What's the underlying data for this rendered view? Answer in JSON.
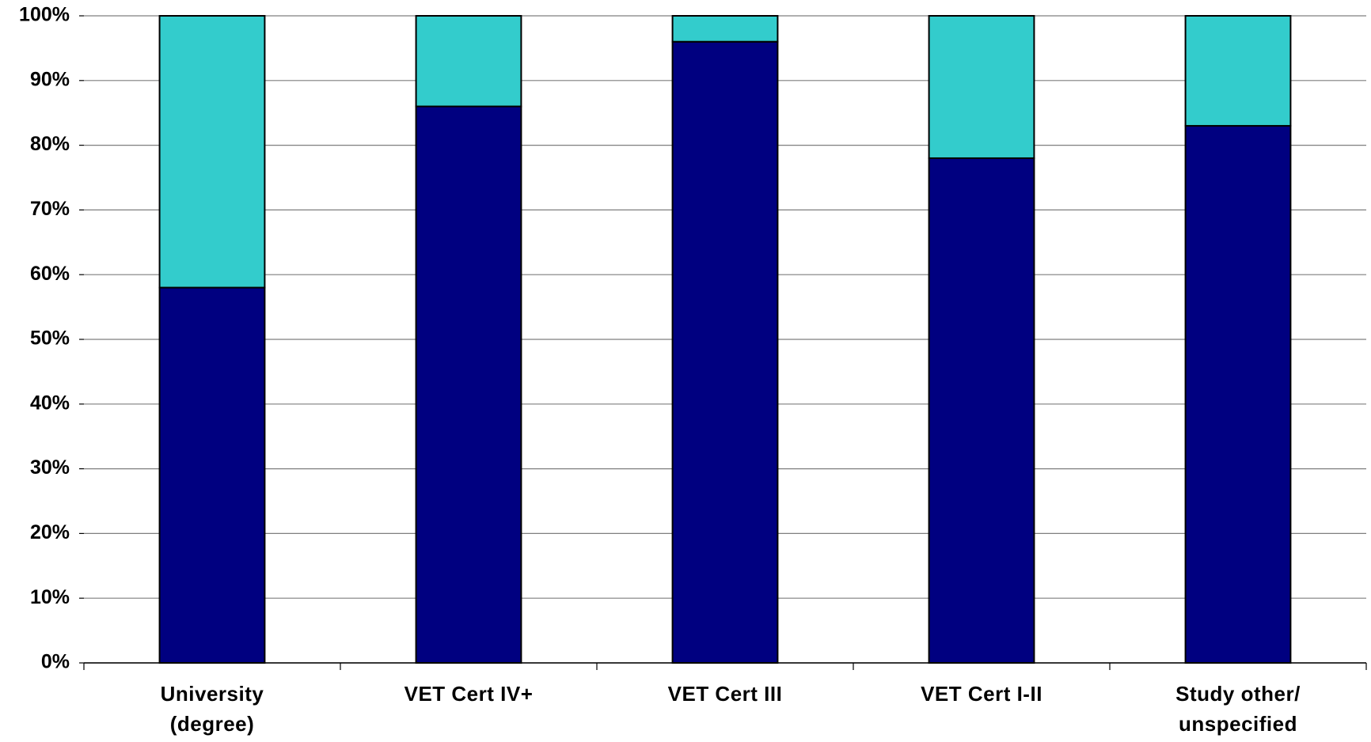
{
  "chart_data": {
    "type": "stacked_bar",
    "categories": [
      "University\n(degree)",
      "VET Cert IV+",
      "VET Cert III",
      "VET Cert I-II",
      "Study other/\nunspecified"
    ],
    "series": [
      {
        "color": "#000080",
        "values": [
          58,
          86,
          96,
          78,
          83
        ]
      },
      {
        "color": "#33cccc",
        "values": [
          42,
          14,
          4,
          22,
          17
        ]
      }
    ],
    "ylim": [
      0,
      100
    ],
    "yticks": [
      {
        "value": 0,
        "label": "0%"
      },
      {
        "value": 10,
        "label": "10%"
      },
      {
        "value": 20,
        "label": "20%"
      },
      {
        "value": 30,
        "label": "30%"
      },
      {
        "value": 40,
        "label": "40%"
      },
      {
        "value": 50,
        "label": "50%"
      },
      {
        "value": 60,
        "label": "60%"
      },
      {
        "value": 70,
        "label": "70%"
      },
      {
        "value": 80,
        "label": "80%"
      },
      {
        "value": 90,
        "label": "90%"
      },
      {
        "value": 100,
        "label": "100%"
      }
    ],
    "grid": true
  }
}
